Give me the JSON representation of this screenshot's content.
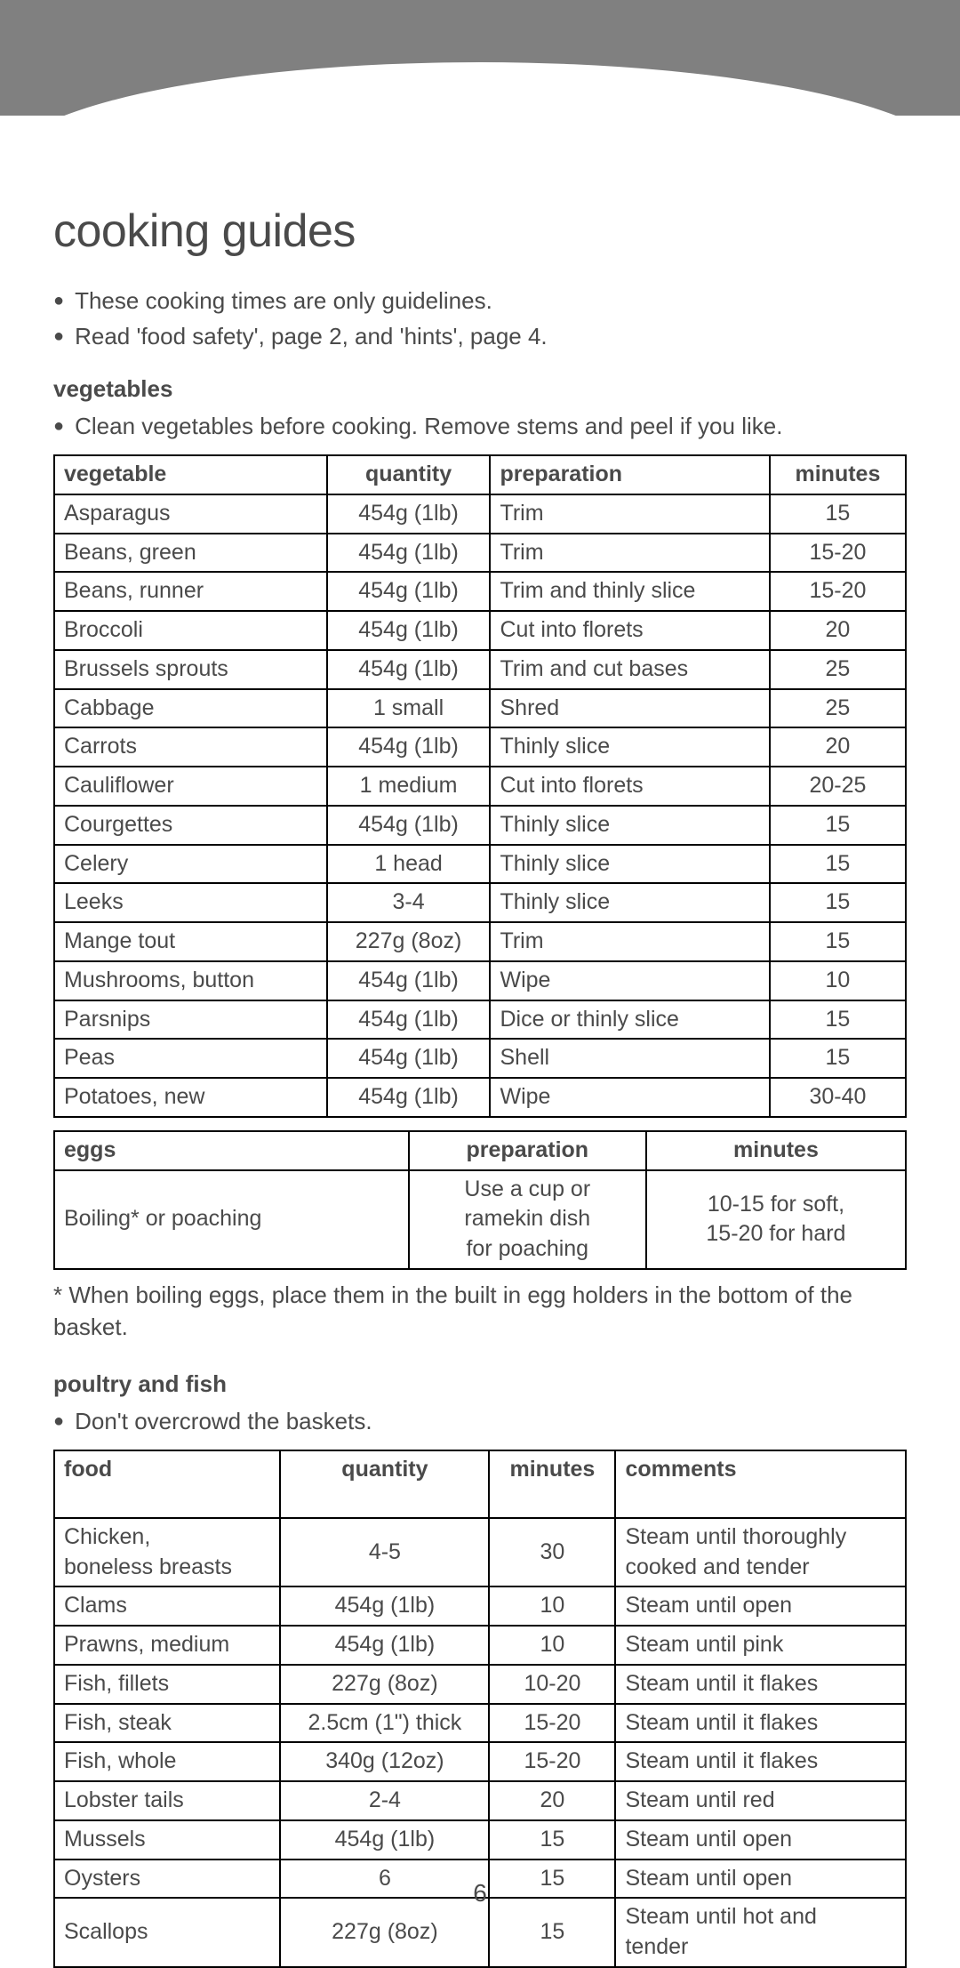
{
  "title": "cooking guides",
  "intro_bullets": [
    "These cooking times are only guidelines.",
    "Read 'food safety', page 2, and 'hints', page 4."
  ],
  "vegetables": {
    "heading": "vegetables",
    "bullet": "Clean vegetables before cooking. Remove stems and peel if you like.",
    "columns": [
      "vegetable",
      "quantity",
      "preparation",
      "minutes"
    ],
    "col_align": [
      "left",
      "center",
      "left",
      "center"
    ],
    "rows": [
      [
        "Asparagus",
        "454g (1lb)",
        "Trim",
        "15"
      ],
      [
        "Beans, green",
        "454g (1lb)",
        "Trim",
        "15-20"
      ],
      [
        "Beans, runner",
        "454g (1lb)",
        "Trim and thinly slice",
        "15-20"
      ],
      [
        "Broccoli",
        "454g (1lb)",
        "Cut into florets",
        "20"
      ],
      [
        "Brussels sprouts",
        "454g (1lb)",
        "Trim and cut bases",
        "25"
      ],
      [
        "Cabbage",
        "1 small",
        "Shred",
        "25"
      ],
      [
        "Carrots",
        "454g (1lb)",
        "Thinly slice",
        "20"
      ],
      [
        "Cauliflower",
        "1 medium",
        "Cut into florets",
        "20-25"
      ],
      [
        "Courgettes",
        "454g (1lb)",
        "Thinly slice",
        "15"
      ],
      [
        "Celery",
        "1 head",
        "Thinly slice",
        "15"
      ],
      [
        "Leeks",
        "3-4",
        "Thinly slice",
        "15"
      ],
      [
        "Mange tout",
        "227g (8oz)",
        "Trim",
        "15"
      ],
      [
        "Mushrooms, button",
        "454g (1lb)",
        "Wipe",
        "10"
      ],
      [
        "Parsnips",
        "454g (1lb)",
        "Dice or thinly slice",
        "15"
      ],
      [
        "Peas",
        "454g (1lb)",
        "Shell",
        "15"
      ],
      [
        "Potatoes, new",
        "454g (1lb)",
        "Wipe",
        "30-40"
      ]
    ]
  },
  "eggs": {
    "columns": [
      "eggs",
      "preparation",
      "minutes"
    ],
    "col_align": [
      "left",
      "center",
      "center"
    ],
    "rows": [
      [
        "Boiling* or poaching",
        "Use a cup or\nramekin dish\nfor poaching",
        "10-15 for soft,\n15-20 for hard"
      ]
    ],
    "note": "* When boiling eggs, place them in the built in egg holders in the bottom of the basket."
  },
  "poultry_fish": {
    "heading": "poultry and fish",
    "bullet": "Don't overcrowd the baskets.",
    "columns": [
      "food",
      "quantity",
      "minutes",
      "comments"
    ],
    "col_align": [
      "left",
      "center",
      "center",
      "left"
    ],
    "header_height": "tall",
    "rows": [
      [
        "Chicken,\nboneless breasts",
        "4-5",
        "30",
        "Steam until thoroughly\ncooked and tender"
      ],
      [
        "Clams",
        "454g (1lb)",
        "10",
        "Steam until open"
      ],
      [
        "Prawns, medium",
        "454g (1lb)",
        "10",
        "Steam until pink"
      ],
      [
        "Fish, fillets",
        "227g (8oz)",
        "10-20",
        "Steam until it flakes"
      ],
      [
        "Fish, steak",
        "2.5cm (1\") thick",
        "15-20",
        "Steam until it flakes"
      ],
      [
        "Fish, whole",
        "340g (12oz)",
        "15-20",
        "Steam until it flakes"
      ],
      [
        "Lobster tails",
        "2-4",
        "20",
        "Steam until red"
      ],
      [
        "Mussels",
        "454g (1lb)",
        "15",
        "Steam until open"
      ],
      [
        "Oysters",
        "6",
        "15",
        "Steam until open"
      ],
      [
        "Scallops",
        "227g (8oz)",
        "15",
        "Steam until hot and\ntender"
      ]
    ]
  },
  "page_number": "6",
  "colors": {
    "header_grey": "#808080",
    "text": "#4a4a4a",
    "border": "#000000",
    "background": "#ffffff"
  },
  "fonts": {
    "title_size": 52,
    "body_size": 26,
    "table_size": 25
  }
}
